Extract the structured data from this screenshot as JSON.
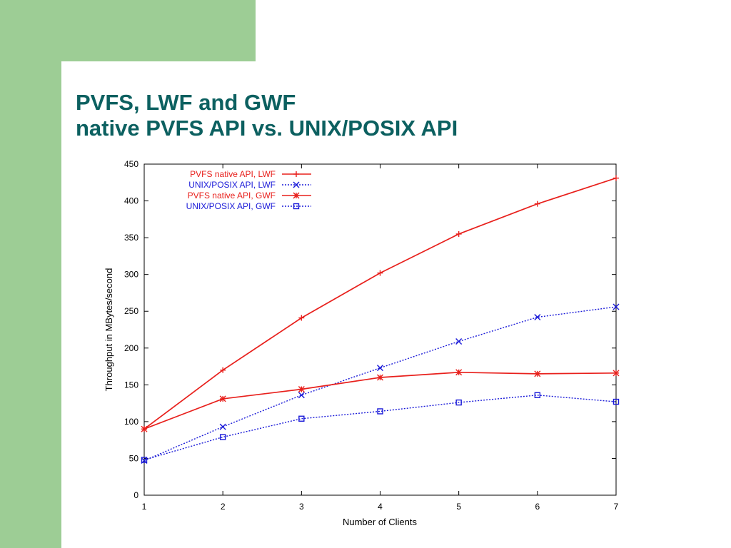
{
  "slide": {
    "title_line1": "PVFS, LWF and GWF",
    "title_line2": "native PVFS API vs. UNIX/POSIX API",
    "colors": {
      "green": "#9dcd95",
      "title": "#0c6060"
    }
  },
  "chart_data": {
    "type": "line",
    "title": "",
    "xlabel": "Number of Clients",
    "ylabel": "Throughput in MBytes/second",
    "x": [
      1,
      2,
      3,
      4,
      5,
      6,
      7
    ],
    "xlim": [
      1,
      7
    ],
    "ylim": [
      0,
      450
    ],
    "yticks": [
      0,
      50,
      100,
      150,
      200,
      250,
      300,
      350,
      400,
      450
    ],
    "xticks": [
      1,
      2,
      3,
      4,
      5,
      6,
      7
    ],
    "grid": false,
    "legend_position": "top-left",
    "series": [
      {
        "name": "PVFS native API, LWF",
        "values": [
          90,
          170,
          241,
          302,
          355,
          396,
          431
        ],
        "color": "#e8201c",
        "dash": "solid",
        "marker": "plus"
      },
      {
        "name": "UNIX/POSIX API, LWF",
        "values": [
          47,
          93,
          136,
          173,
          209,
          242,
          256
        ],
        "color": "#1a1ad8",
        "dash": "dotted",
        "marker": "x"
      },
      {
        "name": "PVFS native API, GWF",
        "values": [
          90,
          131,
          144,
          160,
          167,
          165,
          166
        ],
        "color": "#e8201c",
        "dash": "solid",
        "marker": "star"
      },
      {
        "name": "UNIX/POSIX API, GWF",
        "values": [
          48,
          79,
          104,
          114,
          126,
          136,
          127
        ],
        "color": "#1a1ad8",
        "dash": "dotted",
        "marker": "square"
      }
    ]
  }
}
